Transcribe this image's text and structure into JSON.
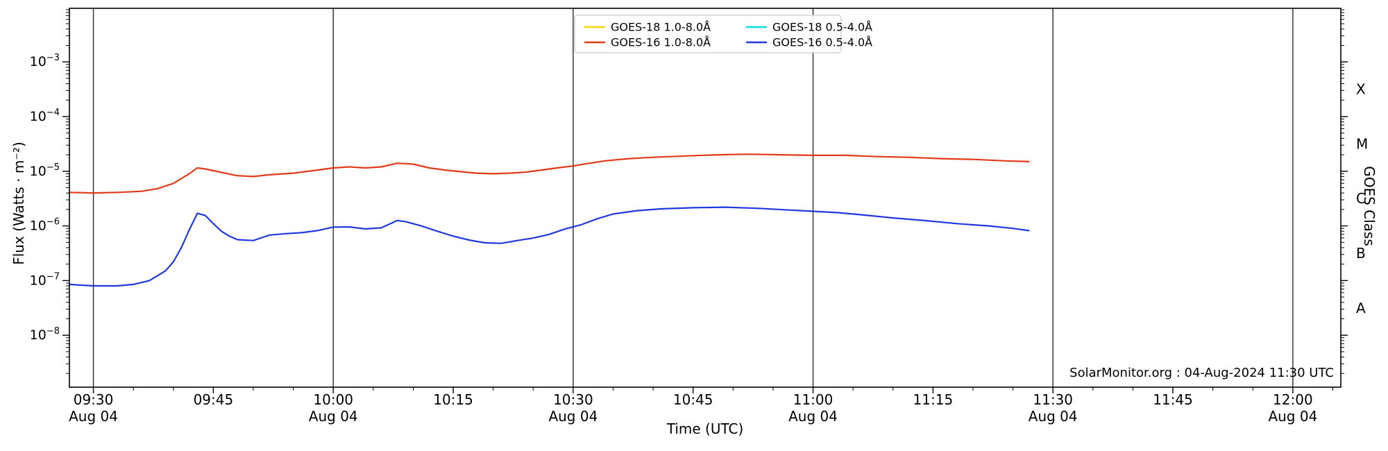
{
  "chart_data": {
    "type": "line",
    "title": "",
    "xlabel": "Time (UTC)",
    "ylabel_left": "Flux (Watts · m⁻²)",
    "ylabel_right": "GOES Class",
    "source_text": "SolarMonitor.org : 04-Aug-2024 11:30 UTC",
    "x_domain_minutes": [
      567,
      726
    ],
    "x_minor_tick_step": 5,
    "x_major_ticks": [
      {
        "m": 570,
        "label": "09:30",
        "date": "Aug 04"
      },
      {
        "m": 585,
        "label": "09:45"
      },
      {
        "m": 600,
        "label": "10:00",
        "date": "Aug 04"
      },
      {
        "m": 615,
        "label": "10:15"
      },
      {
        "m": 630,
        "label": "10:30",
        "date": "Aug 04"
      },
      {
        "m": 645,
        "label": "10:45"
      },
      {
        "m": 660,
        "label": "11:00",
        "date": "Aug 04"
      },
      {
        "m": 675,
        "label": "11:15"
      },
      {
        "m": 690,
        "label": "11:30",
        "date": "Aug 04"
      },
      {
        "m": 705,
        "label": "11:45"
      },
      {
        "m": 720,
        "label": "12:00",
        "date": "Aug 04"
      }
    ],
    "gridline_minutes": [
      570,
      600,
      630,
      660,
      690,
      720
    ],
    "y_log_domain": [
      -8.95,
      -2.02
    ],
    "y_major_exponents": [
      -3,
      -4,
      -5,
      -6,
      -7,
      -8
    ],
    "goes_classes": [
      {
        "label": "X",
        "log_center": -3.5
      },
      {
        "label": "M",
        "log_center": -4.5
      },
      {
        "label": "C",
        "log_center": -5.5
      },
      {
        "label": "B",
        "log_center": -6.5
      },
      {
        "label": "A",
        "log_center": -7.5
      }
    ],
    "legend": {
      "position": "top-center",
      "columns": 2
    },
    "series": [
      {
        "name": "GOES-18 1.0-8.0Å",
        "color": "#ffd400",
        "points": []
      },
      {
        "name": "GOES-16 1.0-8.0Å",
        "color": "#e23a18",
        "points": [
          [
            "09:27",
            4.1e-06
          ],
          [
            "09:30",
            4e-06
          ],
          [
            "09:33",
            4.1e-06
          ],
          [
            "09:36",
            4.3e-06
          ],
          [
            "09:38",
            4.8e-06
          ],
          [
            "09:40",
            6e-06
          ],
          [
            "09:42",
            9e-06
          ],
          [
            "09:43",
            1.15e-05
          ],
          [
            "09:44",
            1.1e-05
          ],
          [
            "09:46",
            9.5e-06
          ],
          [
            "09:48",
            8.3e-06
          ],
          [
            "09:50",
            8e-06
          ],
          [
            "09:52",
            8.6e-06
          ],
          [
            "09:55",
            9.2e-06
          ],
          [
            "09:58",
            1.05e-05
          ],
          [
            "10:00",
            1.15e-05
          ],
          [
            "10:02",
            1.2e-05
          ],
          [
            "10:04",
            1.15e-05
          ],
          [
            "10:06",
            1.2e-05
          ],
          [
            "10:08",
            1.4e-05
          ],
          [
            "10:10",
            1.35e-05
          ],
          [
            "10:12",
            1.15e-05
          ],
          [
            "10:14",
            1.05e-05
          ],
          [
            "10:16",
            9.8e-06
          ],
          [
            "10:18",
            9.2e-06
          ],
          [
            "10:20",
            9e-06
          ],
          [
            "10:22",
            9.2e-06
          ],
          [
            "10:24",
            9.6e-06
          ],
          [
            "10:26",
            1.05e-05
          ],
          [
            "10:28",
            1.15e-05
          ],
          [
            "10:30",
            1.25e-05
          ],
          [
            "10:32",
            1.4e-05
          ],
          [
            "10:34",
            1.55e-05
          ],
          [
            "10:37",
            1.7e-05
          ],
          [
            "10:40",
            1.8e-05
          ],
          [
            "10:44",
            1.9e-05
          ],
          [
            "10:48",
            2e-05
          ],
          [
            "10:52",
            2.05e-05
          ],
          [
            "10:56",
            2e-05
          ],
          [
            "11:00",
            1.95e-05
          ],
          [
            "11:04",
            1.95e-05
          ],
          [
            "11:08",
            1.85e-05
          ],
          [
            "11:12",
            1.8e-05
          ],
          [
            "11:16",
            1.7e-05
          ],
          [
            "11:20",
            1.65e-05
          ],
          [
            "11:24",
            1.55e-05
          ],
          [
            "11:27",
            1.5e-05
          ]
        ]
      },
      {
        "name": "GOES-18 0.5-4.0Å",
        "color": "#00e0e8",
        "points": []
      },
      {
        "name": "GOES-16 0.5-4.0Å",
        "color": "#2038e0",
        "points": [
          [
            "09:27",
            8.5e-08
          ],
          [
            "09:30",
            8e-08
          ],
          [
            "09:33",
            8e-08
          ],
          [
            "09:35",
            8.5e-08
          ],
          [
            "09:37",
            1e-07
          ],
          [
            "09:39",
            1.5e-07
          ],
          [
            "09:40",
            2.2e-07
          ],
          [
            "09:41",
            4e-07
          ],
          [
            "09:42",
            8.5e-07
          ],
          [
            "09:43",
            1.7e-06
          ],
          [
            "09:44",
            1.55e-06
          ],
          [
            "09:45",
            1.1e-06
          ],
          [
            "09:46",
            8e-07
          ],
          [
            "09:47",
            6.5e-07
          ],
          [
            "09:48",
            5.6e-07
          ],
          [
            "09:50",
            5.4e-07
          ],
          [
            "09:52",
            6.8e-07
          ],
          [
            "09:54",
            7.2e-07
          ],
          [
            "09:56",
            7.5e-07
          ],
          [
            "09:58",
            8.2e-07
          ],
          [
            "10:00",
            9.5e-07
          ],
          [
            "10:02",
            9.6e-07
          ],
          [
            "10:04",
            8.8e-07
          ],
          [
            "10:06",
            9.2e-07
          ],
          [
            "10:08",
            1.25e-06
          ],
          [
            "10:09",
            1.2e-06
          ],
          [
            "10:11",
            1e-06
          ],
          [
            "10:13",
            8e-07
          ],
          [
            "10:15",
            6.5e-07
          ],
          [
            "10:17",
            5.5e-07
          ],
          [
            "10:19",
            4.9e-07
          ],
          [
            "10:21",
            4.8e-07
          ],
          [
            "10:23",
            5.4e-07
          ],
          [
            "10:25",
            6e-07
          ],
          [
            "10:27",
            7e-07
          ],
          [
            "10:29",
            8.8e-07
          ],
          [
            "10:31",
            1.05e-06
          ],
          [
            "10:33",
            1.35e-06
          ],
          [
            "10:35",
            1.65e-06
          ],
          [
            "10:38",
            1.9e-06
          ],
          [
            "10:41",
            2.05e-06
          ],
          [
            "10:45",
            2.15e-06
          ],
          [
            "10:49",
            2.2e-06
          ],
          [
            "10:53",
            2.1e-06
          ],
          [
            "10:57",
            1.95e-06
          ],
          [
            "11:00",
            1.85e-06
          ],
          [
            "11:03",
            1.75e-06
          ],
          [
            "11:06",
            1.6e-06
          ],
          [
            "11:10",
            1.4e-06
          ],
          [
            "11:14",
            1.25e-06
          ],
          [
            "11:18",
            1.1e-06
          ],
          [
            "11:22",
            1e-06
          ],
          [
            "11:25",
            9e-07
          ],
          [
            "11:27",
            8.2e-07
          ]
        ]
      }
    ]
  }
}
